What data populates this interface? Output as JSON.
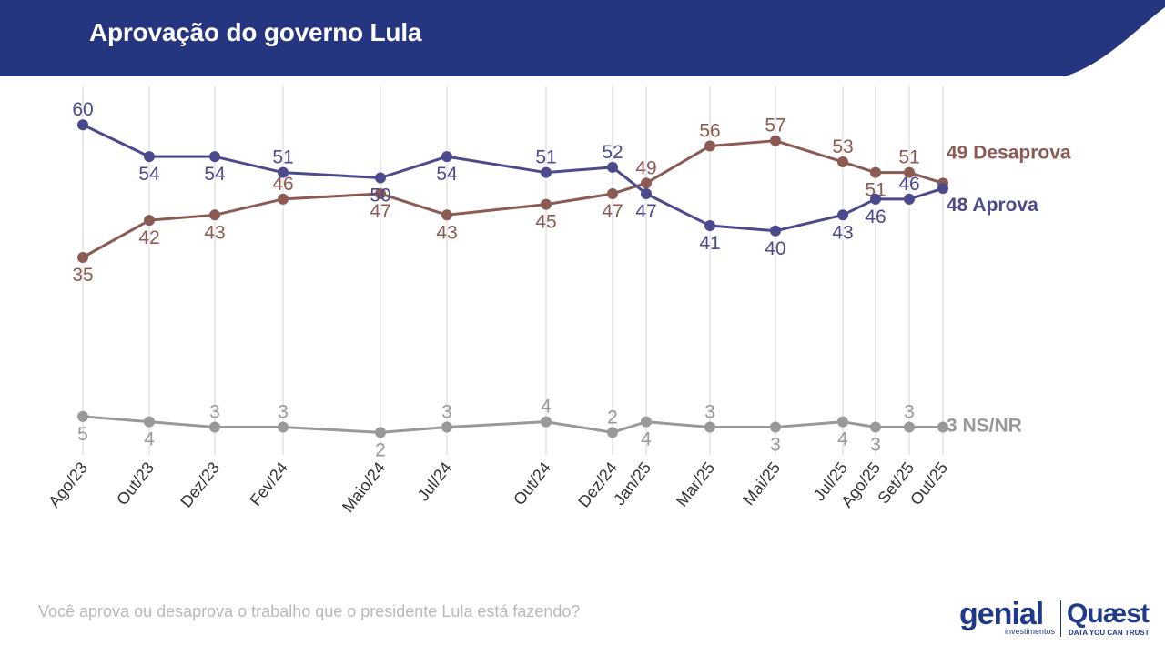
{
  "header": {
    "title": "Aprovação do governo Lula"
  },
  "footer": {
    "question": "Você aprova ou desaprova o trabalho que o presidente Lula está fazendo?",
    "logo_genial": "genial",
    "logo_genial_sub": "investimentos",
    "logo_quaest": "Quæst",
    "logo_quaest_sub": "DATA YOU CAN TRUST"
  },
  "colors": {
    "header_bg": "#253580",
    "aprova": "#4b4a8c",
    "desaprova": "#8b5a52",
    "nsnr": "#999999",
    "gridline": "#e3e3e3"
  },
  "chart_data": {
    "type": "line",
    "title": "Aprovação do governo Lula",
    "categories": [
      "Ago/23",
      "Out/23",
      "Dez/23",
      "Fev/24",
      "Maio/24",
      "Jul/24",
      "Out/24",
      "Dez/24",
      "Jan/25",
      "Mar/25",
      "Mai/25",
      "Jul/25",
      "Ago/25",
      "Set/25",
      "Out/25"
    ],
    "series": [
      {
        "name": "Aprova",
        "end_label": "48 Aprova",
        "color": "#4b4a8c",
        "values": [
          60,
          54,
          54,
          51,
          50,
          54,
          51,
          52,
          47,
          41,
          40,
          43,
          46,
          46,
          48
        ]
      },
      {
        "name": "Desaprova",
        "end_label": "49 Desaprova",
        "color": "#8b5a52",
        "values": [
          35,
          42,
          43,
          46,
          47,
          43,
          45,
          47,
          49,
          56,
          57,
          53,
          51,
          51,
          49
        ]
      },
      {
        "name": "NS/NR",
        "end_label": "3 NS/NR",
        "color": "#999999",
        "values": [
          5,
          4,
          3,
          3,
          2,
          3,
          4,
          2,
          4,
          3,
          3,
          4,
          3,
          3,
          3
        ]
      }
    ],
    "xlabel": "",
    "ylabel": "",
    "grid": "vertical"
  }
}
